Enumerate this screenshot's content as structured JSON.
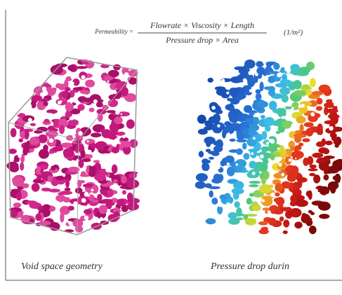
{
  "formula": {
    "lhs": "Permeability =",
    "numerator": "Flowrate × Viscosity × Length",
    "denominator": "Pressure drop × Area",
    "units": "(1/m²)"
  },
  "panels": [
    {
      "caption": "Void space geometry"
    },
    {
      "caption": "Pressure drop durin"
    }
  ]
}
